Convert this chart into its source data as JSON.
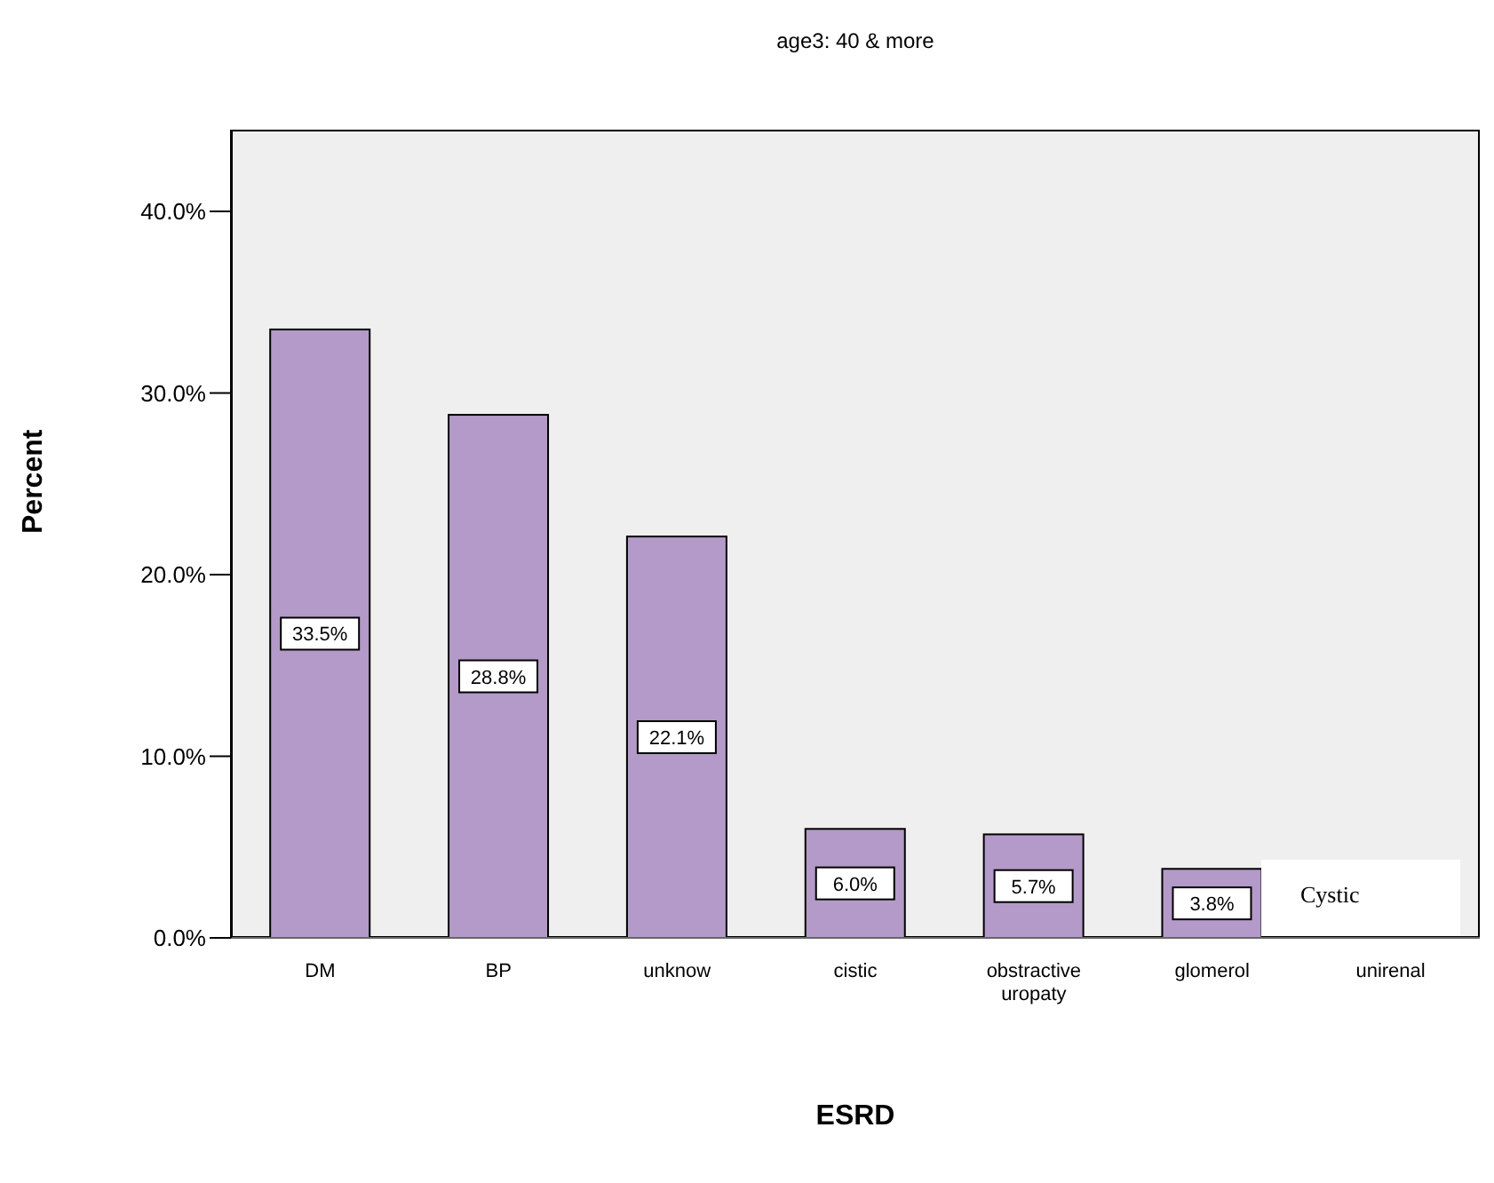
{
  "chart_data": {
    "type": "bar",
    "title": "age3: 40 & more",
    "xlabel": "ESRD",
    "ylabel": "Percent",
    "categories": [
      "DM",
      "BP",
      "unknow",
      "cistic",
      "obstractive uropaty",
      "glomerol",
      "unirenal"
    ],
    "values": [
      33.5,
      28.8,
      22.1,
      6.0,
      5.7,
      3.8,
      null
    ],
    "value_labels": [
      "33.5%",
      "28.8%",
      "22.1%",
      "6.0%",
      "5.7%",
      "3.8%",
      null
    ],
    "color": "#b39ac8",
    "ylim": [
      0,
      44.5
    ],
    "yticks": [
      {
        "value": 0,
        "label": "0.0%"
      },
      {
        "value": 10,
        "label": "10.0%"
      },
      {
        "value": 20,
        "label": "20.0%"
      },
      {
        "value": 30,
        "label": "30.0%"
      },
      {
        "value": 40,
        "label": "40.0%"
      }
    ],
    "annotations": [
      "Cystic"
    ],
    "grid": false,
    "legend": false
  }
}
